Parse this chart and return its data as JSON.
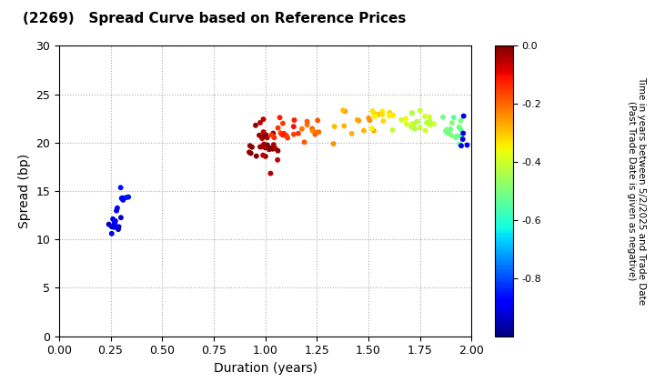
{
  "title": "(2269)   Spread Curve based on Reference Prices",
  "xlabel": "Duration (years)",
  "ylabel": "Spread (bp)",
  "colorbar_label": "Time in years between 5/2/2025 and Trade Date\n(Past Trade Date is given as negative)",
  "xlim": [
    0.0,
    2.0
  ],
  "ylim": [
    0,
    30
  ],
  "xticks": [
    0.0,
    0.25,
    0.5,
    0.75,
    1.0,
    1.25,
    1.5,
    1.75,
    2.0
  ],
  "yticks": [
    0,
    5,
    10,
    15,
    20,
    25,
    30
  ],
  "cmap": "jet",
  "vmin": -1.0,
  "vmax": 0.0,
  "colorbar_ticks": [
    0.0,
    -0.2,
    -0.4,
    -0.6,
    -0.8
  ],
  "background_color": "#ffffff",
  "grid_color": "#aaaaaa",
  "marker_size": 18,
  "clusters": [
    {
      "dc": 0.265,
      "sc": 11.5,
      "cv": -0.92,
      "cnt": 14,
      "ds": 0.018,
      "ss": 0.45
    },
    {
      "dc": 0.33,
      "sc": 14.0,
      "cv": -0.86,
      "cnt": 7,
      "ds": 0.02,
      "ss": 1.0
    },
    {
      "dc": 0.985,
      "sc": 19.8,
      "cv": -0.03,
      "cnt": 32,
      "ds": 0.038,
      "ss": 1.0
    },
    {
      "dc": 1.1,
      "sc": 21.2,
      "cv": -0.13,
      "cnt": 15,
      "ds": 0.035,
      "ss": 0.55
    },
    {
      "dc": 1.22,
      "sc": 21.5,
      "cv": -0.2,
      "cnt": 10,
      "ds": 0.03,
      "ss": 0.55
    },
    {
      "dc": 1.44,
      "sc": 22.3,
      "cv": -0.27,
      "cnt": 12,
      "ds": 0.06,
      "ss": 1.0
    },
    {
      "dc": 1.58,
      "sc": 23.0,
      "cv": -0.33,
      "cnt": 14,
      "ds": 0.05,
      "ss": 0.6
    },
    {
      "dc": 1.73,
      "sc": 22.0,
      "cv": -0.42,
      "cnt": 20,
      "ds": 0.05,
      "ss": 0.5
    },
    {
      "dc": 1.91,
      "sc": 21.3,
      "cv": -0.52,
      "cnt": 18,
      "ds": 0.03,
      "ss": 0.6
    },
    {
      "dc": 1.95,
      "sc": 20.2,
      "cv": -0.9,
      "cnt": 5,
      "ds": 0.02,
      "ss": 0.8
    }
  ]
}
